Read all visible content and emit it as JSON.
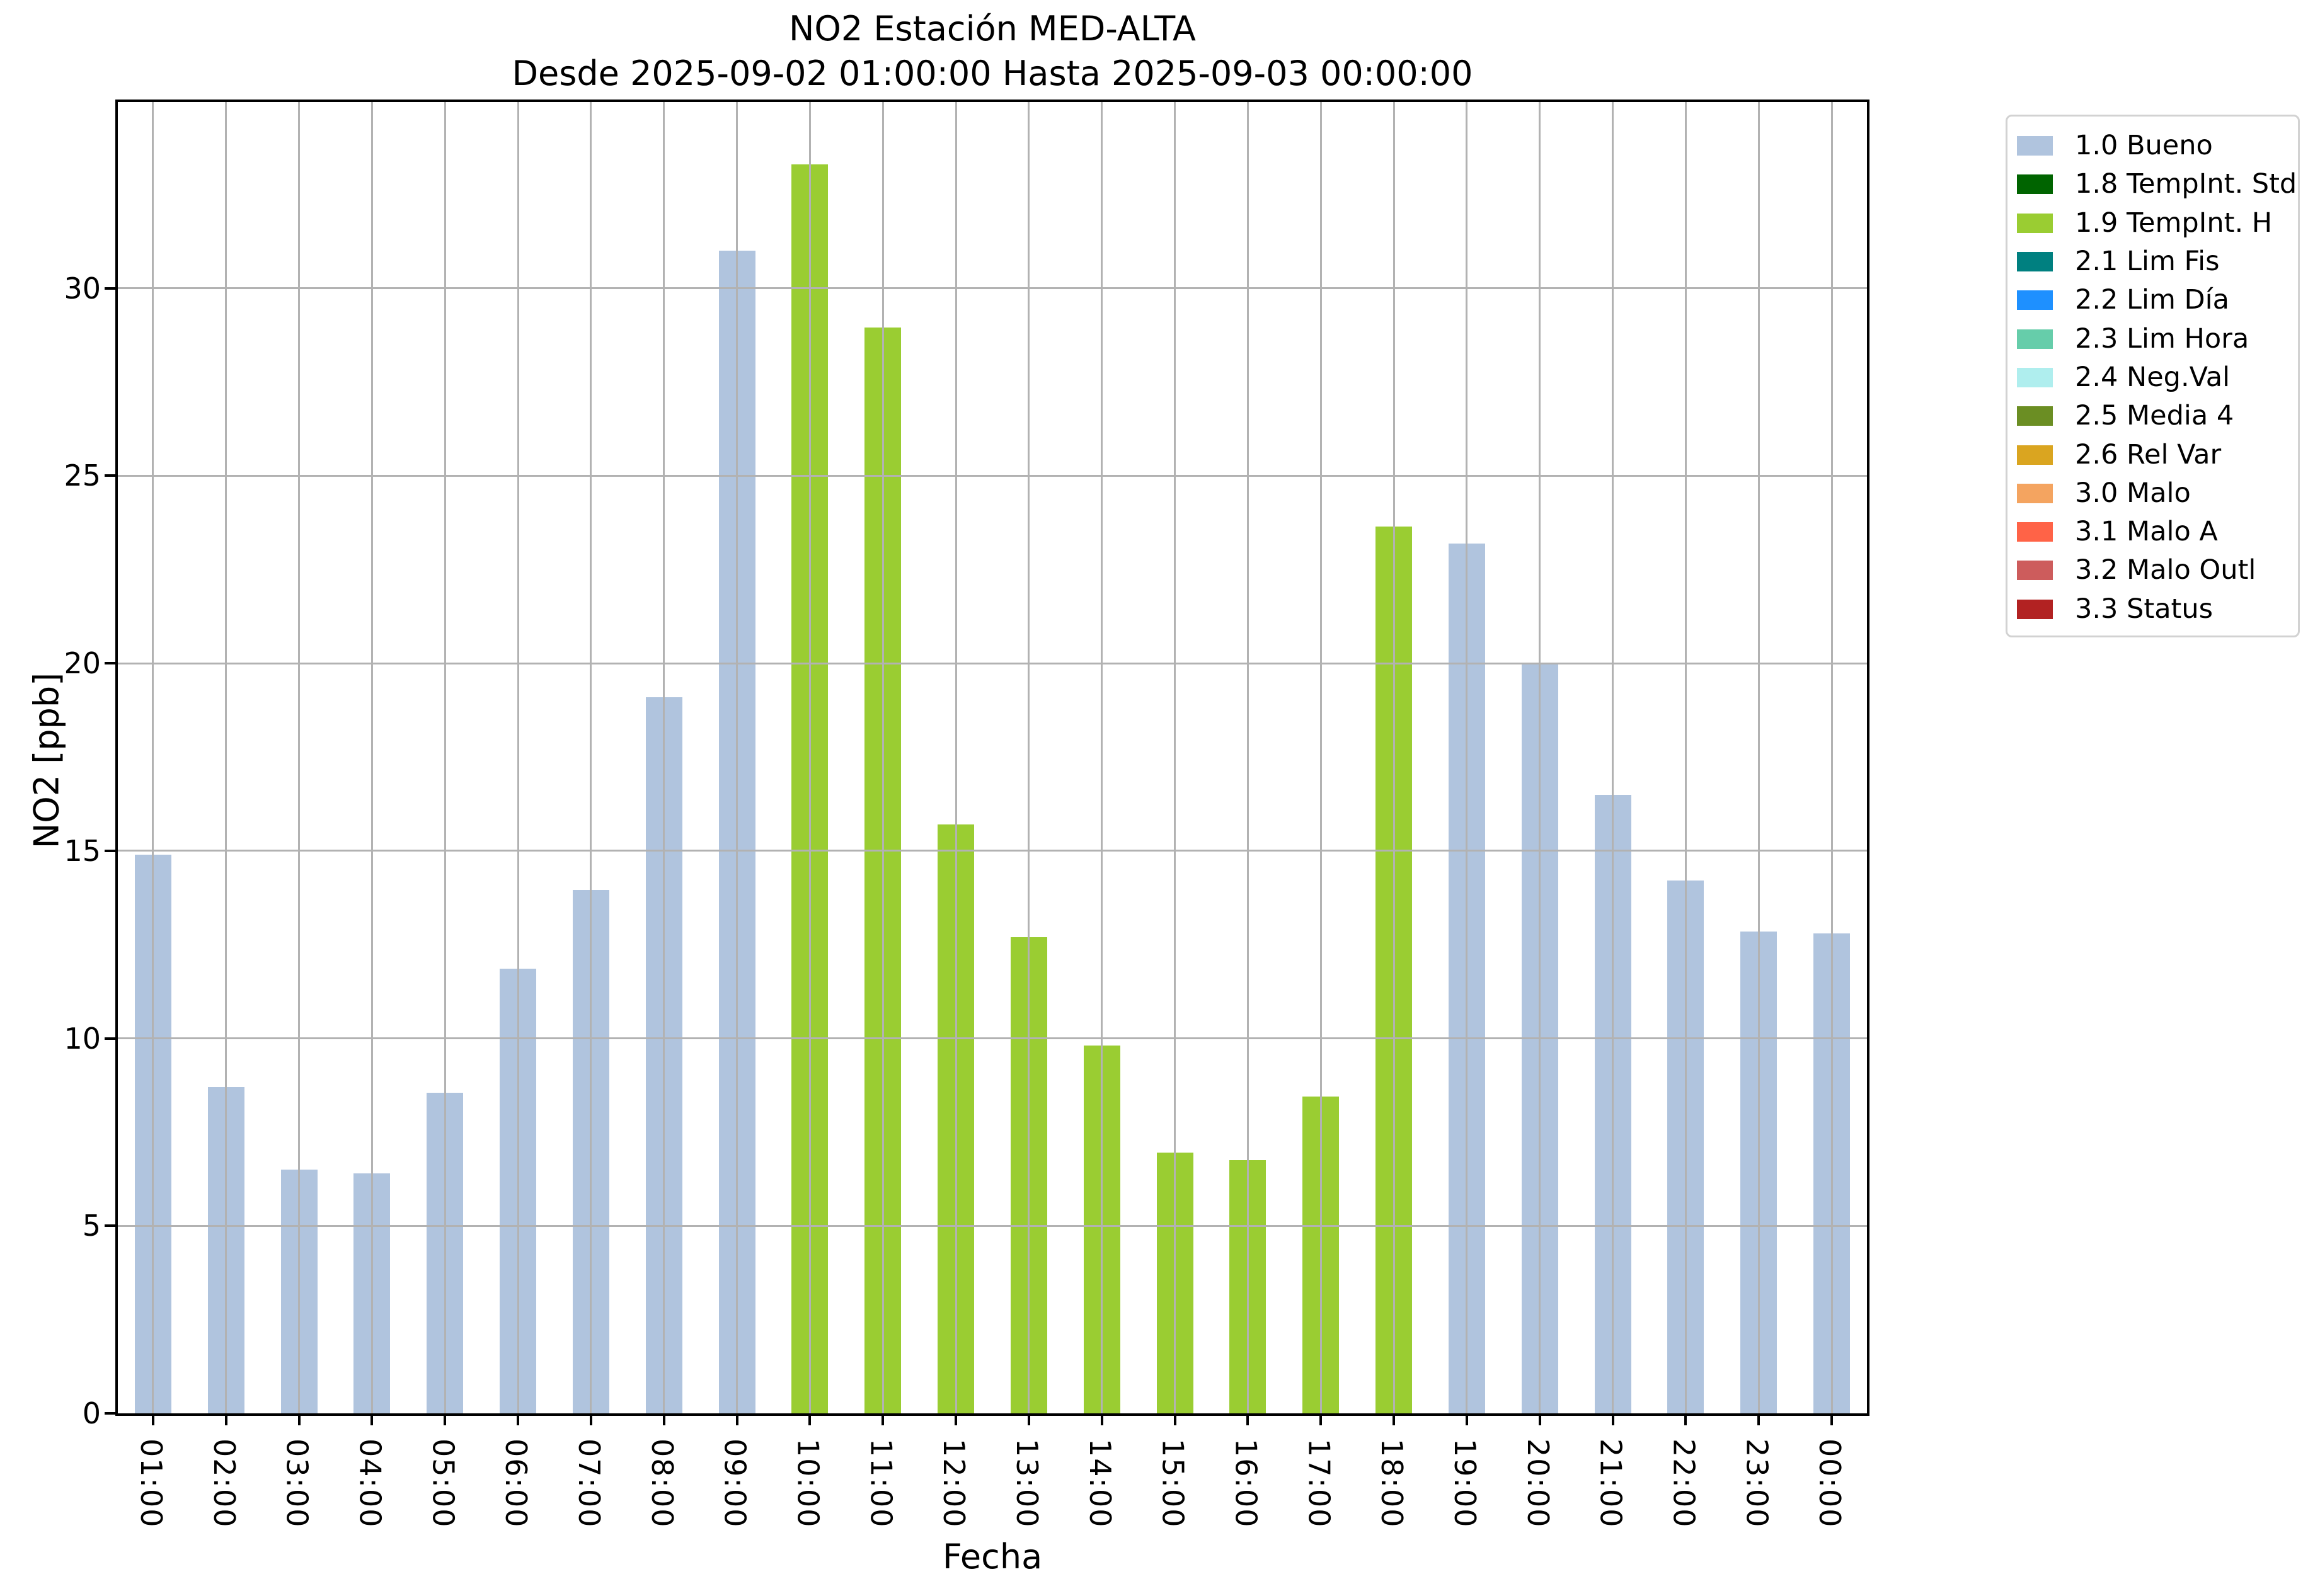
{
  "chart_data": {
    "type": "bar",
    "title": "NO2 Estación MED-ALTA",
    "subtitle": "Desde 2025-09-02 01:00:00 Hasta 2025-09-03 00:00:00",
    "xlabel": "Fecha",
    "ylabel": "NO2 [ppb]",
    "ylim": [
      0,
      35
    ],
    "yticks": [
      0,
      5,
      10,
      15,
      20,
      25,
      30
    ],
    "grid": true,
    "grid_color": "#b2b2b2",
    "legend_position": "outside-upper-right",
    "categories": [
      "01:00",
      "02:00",
      "03:00",
      "04:00",
      "05:00",
      "06:00",
      "07:00",
      "08:00",
      "09:00",
      "10:00",
      "11:00",
      "12:00",
      "13:00",
      "14:00",
      "15:00",
      "16:00",
      "17:00",
      "18:00",
      "19:00",
      "20:00",
      "21:00",
      "22:00",
      "23:00",
      "00:00"
    ],
    "values": [
      14.9,
      8.7,
      6.5,
      6.4,
      8.55,
      11.85,
      13.95,
      19.1,
      31.0,
      33.3,
      28.95,
      15.7,
      12.7,
      9.8,
      6.95,
      6.75,
      8.45,
      23.65,
      23.2,
      20.0,
      16.5,
      14.2,
      12.85,
      12.8
    ],
    "bar_flags": [
      "1.0 Bueno",
      "1.0 Bueno",
      "1.0 Bueno",
      "1.0 Bueno",
      "1.0 Bueno",
      "1.0 Bueno",
      "1.0 Bueno",
      "1.0 Bueno",
      "1.0 Bueno",
      "1.9 TempInt. H",
      "1.9 TempInt. H",
      "1.9 TempInt. H",
      "1.9 TempInt. H",
      "1.9 TempInt. H",
      "1.9 TempInt. H",
      "1.9 TempInt. H",
      "1.9 TempInt. H",
      "1.9 TempInt. H",
      "1.0 Bueno",
      "1.0 Bueno",
      "1.0 Bueno",
      "1.0 Bueno",
      "1.0 Bueno",
      "1.0 Bueno"
    ],
    "legend_entries": [
      {
        "label": "1.0 Bueno",
        "color": "#b0c4de"
      },
      {
        "label": "1.8 TempInt. Std",
        "color": "#006400"
      },
      {
        "label": "1.9 TempInt. H",
        "color": "#9acd32"
      },
      {
        "label": "2.1 Lim Fis",
        "color": "#008080"
      },
      {
        "label": "2.2 Lim Día",
        "color": "#1e90ff"
      },
      {
        "label": "2.3 Lim Hora",
        "color": "#66cdaa"
      },
      {
        "label": "2.4 Neg.Val",
        "color": "#afeeee"
      },
      {
        "label": "2.5 Media 4",
        "color": "#6b8e23"
      },
      {
        "label": "2.6 Rel Var",
        "color": "#daa520"
      },
      {
        "label": "3.0 Malo",
        "color": "#f4a460"
      },
      {
        "label": "3.1 Malo A",
        "color": "#ff6347"
      },
      {
        "label": "3.2 Malo Outl",
        "color": "#cd5c5c"
      },
      {
        "label": "3.3 Status",
        "color": "#b22222"
      }
    ]
  }
}
